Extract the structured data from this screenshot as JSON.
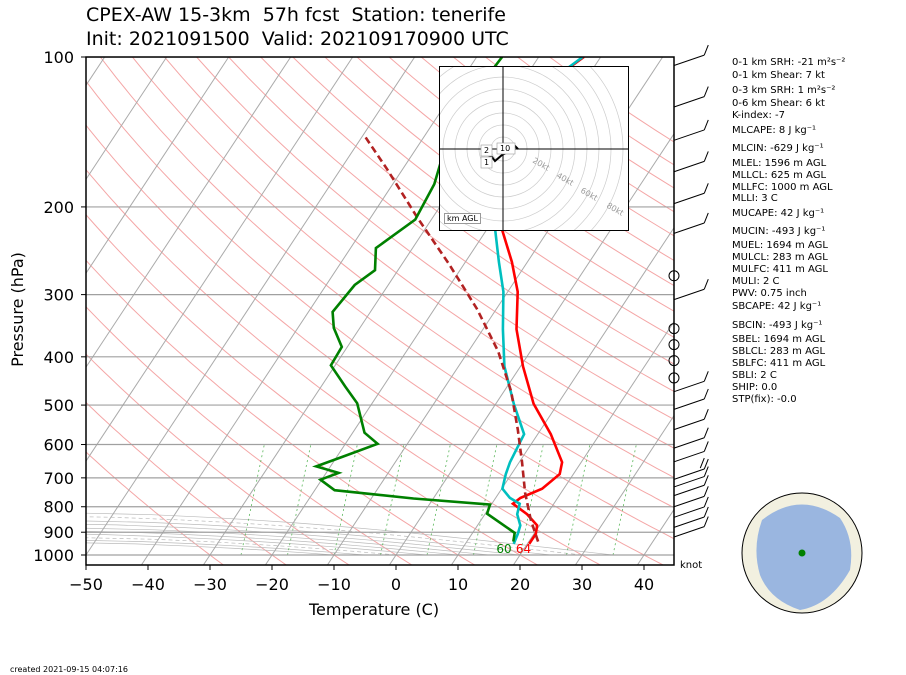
{
  "title": {
    "line1": "CPEX-AW 15-3km  57h fcst  Station: tenerife",
    "line2": "Init: 2021091500  Valid: 202109170900 UTC"
  },
  "footer": "created 2021-09-15 04:07:16",
  "knot_label": "knot",
  "hodograph": {
    "agl_label": "km AGL",
    "ring_labels": [
      "20kt",
      "40kt",
      "60kt",
      "80kt"
    ],
    "height_labels": [
      "1",
      "2",
      "10"
    ]
  },
  "indices": [
    "0-1 km SRH: -21 m²s⁻²",
    "0-1 km Shear: 7 kt",
    "0-3 km SRH: 1 m²s⁻²",
    "0-6 km Shear: 6 kt",
    "K-index: -7",
    "MLCAPE: 8 J kg⁻¹",
    "MLCIN: -629 J kg⁻¹",
    "MLEL: 1596 m AGL",
    "MLLCL: 625 m AGL",
    "MLLFC: 1000 m AGL",
    "MLLI: 3 C",
    "MUCAPE: 42 J kg⁻¹",
    "MUCIN: -493 J kg⁻¹",
    "MUEL: 1694 m AGL",
    "MULCL: 283 m AGL",
    "MULFC: 411 m AGL",
    "MULI: 2 C",
    "PWV: 0.75 inch",
    "SBCAPE: 42 J kg⁻¹",
    "SBCIN: -493 J kg⁻¹",
    "SBEL: 1694 m AGL",
    "SBLCL: 283 m AGL",
    "SBLFC: 411 m AGL",
    "SBLI: 2 C",
    "SHIP: 0.0",
    "STP(fix): -0.0"
  ],
  "chart_data": {
    "type": "line",
    "xlabel": "Temperature (C)",
    "ylabel": "Pressure (hPa)",
    "xlim": [
      -50,
      45
    ],
    "ylim": [
      1050,
      100
    ],
    "x_ticks": [
      -50,
      -40,
      -30,
      -20,
      -10,
      0,
      10,
      20,
      30,
      40
    ],
    "y_ticks": [
      100,
      200,
      300,
      400,
      500,
      600,
      700,
      800,
      900,
      1000
    ],
    "y_scale": "log",
    "surface_labels": {
      "dewpoint": "60",
      "temperature": "64"
    },
    "series": [
      {
        "kind": "temperature",
        "color": "#ff0000",
        "points": [
          [
            -22.7,
            100
          ],
          [
            -26.4,
            116
          ],
          [
            -28.2,
            133
          ],
          [
            -26.3,
            154
          ],
          [
            -24.2,
            179
          ],
          [
            -19.1,
            212
          ],
          [
            -12.5,
            258
          ],
          [
            -8.4,
            296
          ],
          [
            -4.6,
            352
          ],
          [
            0.4,
            418
          ],
          [
            6.1,
            497
          ],
          [
            12.1,
            572
          ],
          [
            16.9,
            651
          ],
          [
            17.8,
            688
          ],
          [
            16.5,
            736
          ],
          [
            14.0,
            768
          ],
          [
            13.4,
            789
          ],
          [
            16.8,
            828
          ],
          [
            19.6,
            872
          ],
          [
            20.3,
            907
          ],
          [
            20.3,
            950
          ]
        ]
      },
      {
        "kind": "dewpoint",
        "color": "#00bfbf",
        "points": [
          [
            -22.9,
            100
          ],
          [
            -26.5,
            116
          ],
          [
            -28.3,
            133
          ],
          [
            -27.1,
            154
          ],
          [
            -24.6,
            179
          ],
          [
            -19.9,
            212
          ],
          [
            -14.6,
            258
          ],
          [
            -10.7,
            296
          ],
          [
            -6.8,
            352
          ],
          [
            -2.6,
            418
          ],
          [
            2.9,
            497
          ],
          [
            7.8,
            572
          ],
          [
            8.5,
            651
          ],
          [
            9.1,
            688
          ],
          [
            10.1,
            736
          ],
          [
            12.3,
            768
          ],
          [
            14.5,
            789
          ],
          [
            15.2,
            828
          ],
          [
            16.9,
            872
          ],
          [
            17.4,
            907
          ],
          [
            17.8,
            950
          ]
        ]
      },
      {
        "kind": "parcel",
        "color": "#b22222",
        "dashed": true,
        "points": [
          [
            21.5,
            940
          ],
          [
            18.0,
            850
          ],
          [
            14.2,
            750
          ],
          [
            10.4,
            650
          ],
          [
            6.3,
            560
          ],
          [
            1.2,
            470
          ],
          [
            -5.2,
            390
          ],
          [
            -13.2,
            320
          ],
          [
            -22.5,
            260
          ],
          [
            -32.5,
            210
          ],
          [
            -42.5,
            168
          ],
          [
            -50.0,
            143
          ]
        ]
      },
      {
        "kind": "rh_profile",
        "color": "#008000",
        "points": [
          [
            -35.9,
            100
          ],
          [
            -36.7,
            125
          ],
          [
            -35.3,
            154
          ],
          [
            -33.3,
            180
          ],
          [
            -32.6,
            212
          ],
          [
            -35.9,
            242
          ],
          [
            -33.7,
            268
          ],
          [
            -35.4,
            287
          ],
          [
            -36.1,
            325
          ],
          [
            -34.2,
            350
          ],
          [
            -30.9,
            382
          ],
          [
            -30.7,
            416
          ],
          [
            -26.1,
            459
          ],
          [
            -22.4,
            496
          ],
          [
            -18.1,
            568
          ],
          [
            -14.8,
            598
          ],
          [
            -19.2,
            636
          ],
          [
            -22.3,
            664
          ],
          [
            -18.0,
            684
          ],
          [
            -20.2,
            706
          ],
          [
            -16.8,
            741
          ],
          [
            -3.2,
            770
          ],
          [
            9.8,
            792
          ],
          [
            10.3,
            826
          ],
          [
            16.8,
            903
          ],
          [
            17.5,
            940
          ]
        ]
      }
    ],
    "wind_barbs": [
      {
        "p": 104,
        "speed": 5
      },
      {
        "p": 126,
        "speed": 5
      },
      {
        "p": 147,
        "speed": 5
      },
      {
        "p": 170,
        "speed": 10
      },
      {
        "p": 197,
        "speed": 10
      },
      {
        "p": 226,
        "speed": 5
      },
      {
        "p": 275,
        "speed": 0
      },
      {
        "p": 307,
        "speed": 10
      },
      {
        "p": 351,
        "speed": 0
      },
      {
        "p": 378,
        "speed": 0
      },
      {
        "p": 407,
        "speed": 0
      },
      {
        "p": 441,
        "speed": 0
      },
      {
        "p": 470,
        "speed": 5
      },
      {
        "p": 510,
        "speed": 10
      },
      {
        "p": 560,
        "speed": 10
      },
      {
        "p": 610,
        "speed": 10
      },
      {
        "p": 650,
        "speed": 10
      },
      {
        "p": 705,
        "speed": 15
      },
      {
        "p": 730,
        "speed": 10
      },
      {
        "p": 760,
        "speed": 10
      },
      {
        "p": 800,
        "speed": 10
      },
      {
        "p": 840,
        "speed": 10
      },
      {
        "p": 880,
        "speed": 10
      },
      {
        "p": 920,
        "speed": 10
      }
    ],
    "station_marker": {
      "lon": -16.5,
      "lat": 28.3
    }
  }
}
